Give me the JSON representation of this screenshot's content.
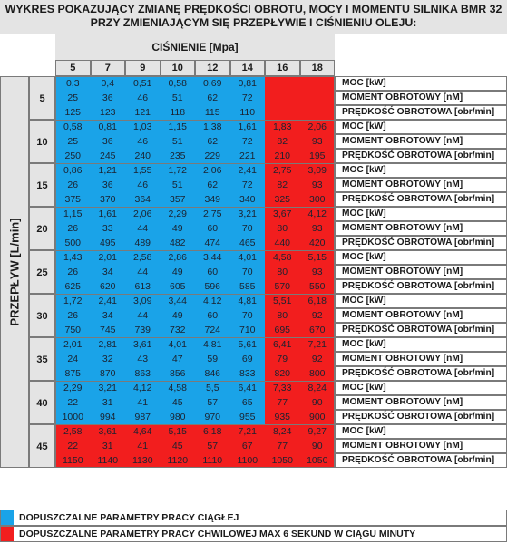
{
  "title": {
    "line1": "WYKRES POKAZUJĄCY ZMIANĘ PRĘDKOŚCI OBROTU, MOCY I MOMENTU SILNIKA BMR 32",
    "line2": "PRZY ZMIENIAJĄCYM SIĘ PRZEPŁYWIE I CIŚNIENIU OLEJU:"
  },
  "pressure_label": "CIŚNIENIE  [Mpa]",
  "pressures": [
    "5",
    "7",
    "9",
    "10",
    "12",
    "14",
    "16",
    "18"
  ],
  "flow_label": "PRZEPŁYW [L/min]",
  "row_labels": [
    "MOC [kW]",
    "MOMENT OBROTOWY [nM]",
    "PRĘDKOŚĆ OBROTOWA [obr/min]"
  ],
  "groups": [
    {
      "flow": "5",
      "power": [
        "0,3",
        "0,4",
        "0,51",
        "0,58",
        "0,69",
        "0,81",
        "",
        ""
      ],
      "torque": [
        "25",
        "36",
        "46",
        "51",
        "62",
        "72",
        "",
        ""
      ],
      "speed": [
        "125",
        "123",
        "121",
        "118",
        "115",
        "110",
        "",
        ""
      ],
      "blue_count": 6
    },
    {
      "flow": "10",
      "power": [
        "0,58",
        "0,81",
        "1,03",
        "1,15",
        "1,38",
        "1,61",
        "1,83",
        "2,06"
      ],
      "torque": [
        "25",
        "36",
        "46",
        "51",
        "62",
        "72",
        "82",
        "93"
      ],
      "speed": [
        "250",
        "245",
        "240",
        "235",
        "229",
        "221",
        "210",
        "195"
      ],
      "blue_count": 6
    },
    {
      "flow": "15",
      "power": [
        "0,86",
        "1,21",
        "1,55",
        "1,72",
        "2,06",
        "2,41",
        "2,75",
        "3,09"
      ],
      "torque": [
        "26",
        "36",
        "46",
        "51",
        "62",
        "72",
        "82",
        "93"
      ],
      "speed": [
        "375",
        "370",
        "364",
        "357",
        "349",
        "340",
        "325",
        "300"
      ],
      "blue_count": 6
    },
    {
      "flow": "20",
      "power": [
        "1,15",
        "1,61",
        "2,06",
        "2,29",
        "2,75",
        "3,21",
        "3,67",
        "4,12"
      ],
      "torque": [
        "26",
        "33",
        "44",
        "49",
        "60",
        "70",
        "80",
        "93"
      ],
      "speed": [
        "500",
        "495",
        "489",
        "482",
        "474",
        "465",
        "440",
        "420"
      ],
      "blue_count": 6
    },
    {
      "flow": "25",
      "power": [
        "1,43",
        "2,01",
        "2,58",
        "2,86",
        "3,44",
        "4,01",
        "4,58",
        "5,15"
      ],
      "torque": [
        "26",
        "34",
        "44",
        "49",
        "60",
        "70",
        "80",
        "93"
      ],
      "speed": [
        "625",
        "620",
        "613",
        "605",
        "596",
        "585",
        "570",
        "550"
      ],
      "blue_count": 6
    },
    {
      "flow": "30",
      "power": [
        "1,72",
        "2,41",
        "3,09",
        "3,44",
        "4,12",
        "4,81",
        "5,51",
        "6,18"
      ],
      "torque": [
        "26",
        "34",
        "44",
        "49",
        "60",
        "70",
        "80",
        "92"
      ],
      "speed": [
        "750",
        "745",
        "739",
        "732",
        "724",
        "710",
        "695",
        "670"
      ],
      "blue_count": 6
    },
    {
      "flow": "35",
      "power": [
        "2,01",
        "2,81",
        "3,61",
        "4,01",
        "4,81",
        "5,61",
        "6,41",
        "7,21"
      ],
      "torque": [
        "24",
        "32",
        "43",
        "47",
        "59",
        "69",
        "79",
        "92"
      ],
      "speed": [
        "875",
        "870",
        "863",
        "856",
        "846",
        "833",
        "820",
        "800"
      ],
      "blue_count": 6
    },
    {
      "flow": "40",
      "power": [
        "2,29",
        "3,21",
        "4,12",
        "4,58",
        "5,5",
        "6,41",
        "7,33",
        "8,24"
      ],
      "torque": [
        "22",
        "31",
        "41",
        "45",
        "57",
        "65",
        "77",
        "90"
      ],
      "speed": [
        "1000",
        "994",
        "987",
        "980",
        "970",
        "955",
        "935",
        "900"
      ],
      "blue_count": 6
    },
    {
      "flow": "45",
      "power": [
        "2,58",
        "3,61",
        "4,64",
        "5,15",
        "6,18",
        "7,21",
        "8,24",
        "9,27"
      ],
      "torque": [
        "22",
        "31",
        "41",
        "45",
        "57",
        "67",
        "77",
        "90"
      ],
      "speed": [
        "1150",
        "1140",
        "1130",
        "1120",
        "1110",
        "1100",
        "1050",
        "1050"
      ],
      "blue_count": 0
    }
  ],
  "legend": {
    "continuous": "DOPUSZCZALNE PARAMETRY PRACY CIĄGŁEJ",
    "intermittent": "DOPUSZCZALNE PARAMETRY PRACY CHWILOWEJ MAX 6 SEKUND W CIĄGU MINUTY"
  },
  "colors": {
    "continuous": "#1aa3e8",
    "intermittent": "#f21e1e"
  }
}
